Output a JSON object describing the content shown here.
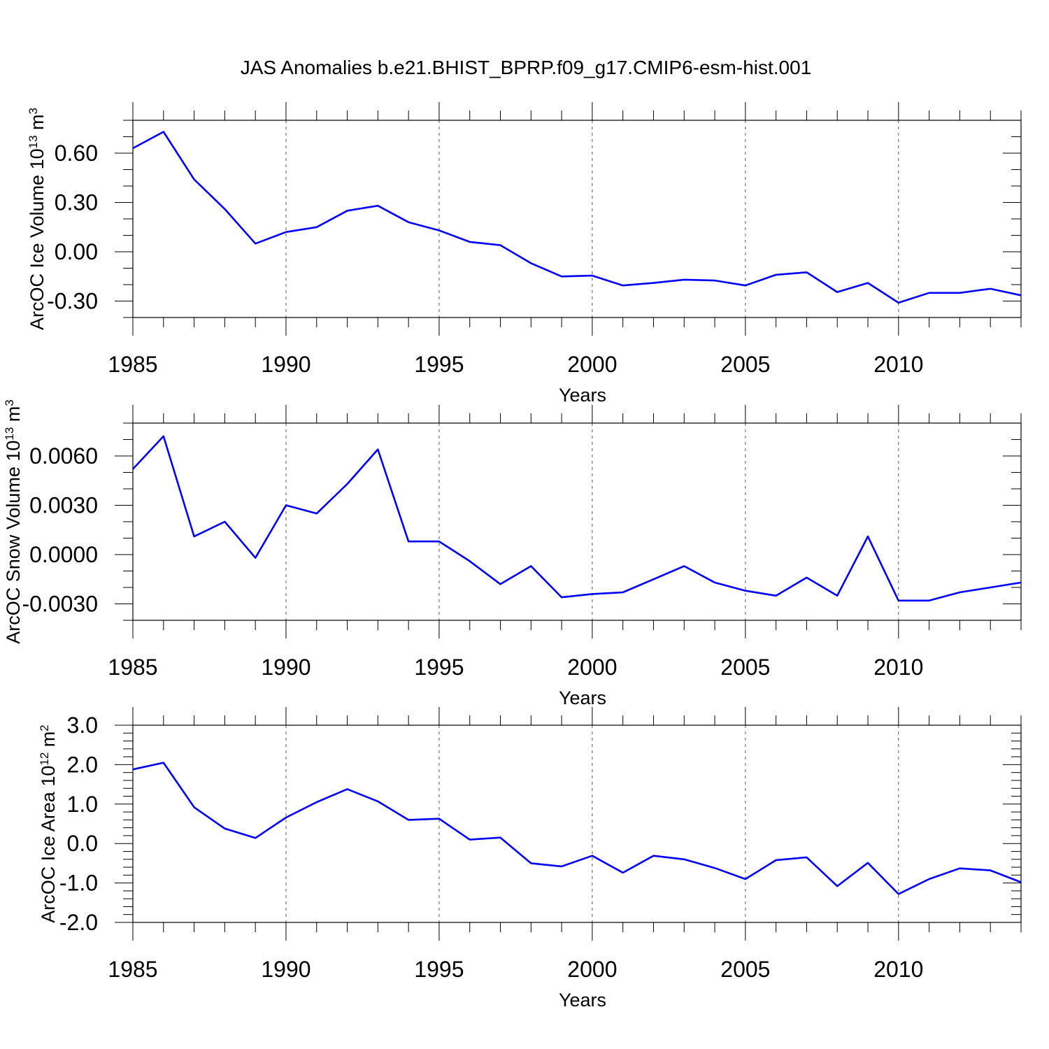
{
  "title": "JAS Anomalies b.e21.BHIST_BPRP.f09_g17.CMIP6-esm-hist.001",
  "chart_data": [
    {
      "type": "line",
      "id": "ice-volume",
      "ylabel": "ArcOC Ice Volume 10",
      "ylabel_exp": "13",
      "ylabel_unit": " m",
      "ylabel_unit_exp": "3",
      "xlabel": "Years",
      "xlim": [
        1985,
        2014
      ],
      "ylim": [
        -0.4,
        0.8
      ],
      "yticks": [
        0.6,
        0.3,
        0.0,
        -0.3
      ],
      "ytick_labels": [
        "0.60",
        "0.30",
        "0.00",
        "-0.30"
      ],
      "yminor_step": 0.1,
      "xticks": [
        1985,
        1990,
        1995,
        2000,
        2005,
        2010
      ],
      "xtick_labels": [
        "1985",
        "1990",
        "1995",
        "2000",
        "2005",
        "2010"
      ],
      "x": [
        1985,
        1986,
        1987,
        1988,
        1989,
        1990,
        1991,
        1992,
        1993,
        1994,
        1995,
        1996,
        1997,
        1998,
        1999,
        2000,
        2001,
        2002,
        2003,
        2004,
        2005,
        2006,
        2007,
        2008,
        2009,
        2010,
        2011,
        2012,
        2013,
        2014
      ],
      "values": [
        0.63,
        0.73,
        0.44,
        0.26,
        0.05,
        0.12,
        0.15,
        0.25,
        0.28,
        0.18,
        0.13,
        0.06,
        0.04,
        -0.07,
        -0.15,
        -0.145,
        -0.205,
        -0.19,
        -0.17,
        -0.175,
        -0.205,
        -0.14,
        -0.125,
        -0.245,
        -0.19,
        -0.31,
        -0.25,
        -0.25,
        -0.225,
        -0.265
      ],
      "color": "#0000ff"
    },
    {
      "type": "line",
      "id": "snow-volume",
      "ylabel": "ArcOC Snow Volume 10",
      "ylabel_exp": "13",
      "ylabel_unit": " m",
      "ylabel_unit_exp": "3",
      "xlabel": "Years",
      "xlim": [
        1985,
        2014
      ],
      "ylim": [
        -0.004,
        0.008
      ],
      "yticks": [
        0.006,
        0.003,
        0.0,
        -0.003
      ],
      "ytick_labels": [
        "0.0060",
        "0.0030",
        "0.0000",
        "-0.0030"
      ],
      "yminor_step": 0.001,
      "xticks": [
        1985,
        1990,
        1995,
        2000,
        2005,
        2010
      ],
      "xtick_labels": [
        "1985",
        "1990",
        "1995",
        "2000",
        "2005",
        "2010"
      ],
      "x": [
        1985,
        1986,
        1987,
        1988,
        1989,
        1990,
        1991,
        1992,
        1993,
        1994,
        1995,
        1996,
        1997,
        1998,
        1999,
        2000,
        2001,
        2002,
        2003,
        2004,
        2005,
        2006,
        2007,
        2008,
        2009,
        2010,
        2011,
        2012,
        2013,
        2014
      ],
      "values": [
        0.0052,
        0.0072,
        0.0011,
        0.002,
        -0.0002,
        0.003,
        0.0025,
        0.0043,
        0.0064,
        0.0008,
        0.0008,
        -0.0004,
        -0.0018,
        -0.0007,
        -0.0026,
        -0.0024,
        -0.0023,
        -0.0015,
        -0.0007,
        -0.0017,
        -0.0022,
        -0.0025,
        -0.0014,
        -0.0025,
        0.0011,
        -0.0028,
        -0.0028,
        -0.0023,
        -0.002,
        -0.0017
      ],
      "color": "#0000ff"
    },
    {
      "type": "line",
      "id": "ice-area",
      "ylabel": "ArcOC Ice Area 10",
      "ylabel_exp": "12",
      "ylabel_unit": " m",
      "ylabel_unit_exp": "2",
      "xlabel": "Years",
      "xlim": [
        1985,
        2014
      ],
      "ylim": [
        -2.0,
        3.0
      ],
      "yticks": [
        3.0,
        2.0,
        1.0,
        0.0,
        -1.0,
        -2.0
      ],
      "ytick_labels": [
        "3.0",
        "2.0",
        "1.0",
        "0.0",
        "-1.0",
        "-2.0"
      ],
      "yminor_step": 0.2,
      "xticks": [
        1985,
        1990,
        1995,
        2000,
        2005,
        2010
      ],
      "xtick_labels": [
        "1985",
        "1990",
        "1995",
        "2000",
        "2005",
        "2010"
      ],
      "x": [
        1985,
        1986,
        1987,
        1988,
        1989,
        1990,
        1991,
        1992,
        1993,
        1994,
        1995,
        1996,
        1997,
        1998,
        1999,
        2000,
        2001,
        2002,
        2003,
        2004,
        2005,
        2006,
        2007,
        2008,
        2009,
        2010,
        2011,
        2012,
        2013,
        2014
      ],
      "values": [
        1.88,
        2.05,
        0.92,
        0.38,
        0.14,
        0.66,
        1.05,
        1.38,
        1.07,
        0.6,
        0.63,
        0.1,
        0.15,
        -0.5,
        -0.58,
        -0.31,
        -0.74,
        -0.31,
        -0.4,
        -0.62,
        -0.9,
        -0.42,
        -0.35,
        -1.08,
        -0.49,
        -1.28,
        -0.9,
        -0.63,
        -0.68,
        -0.98
      ],
      "color": "#0000ff"
    }
  ]
}
